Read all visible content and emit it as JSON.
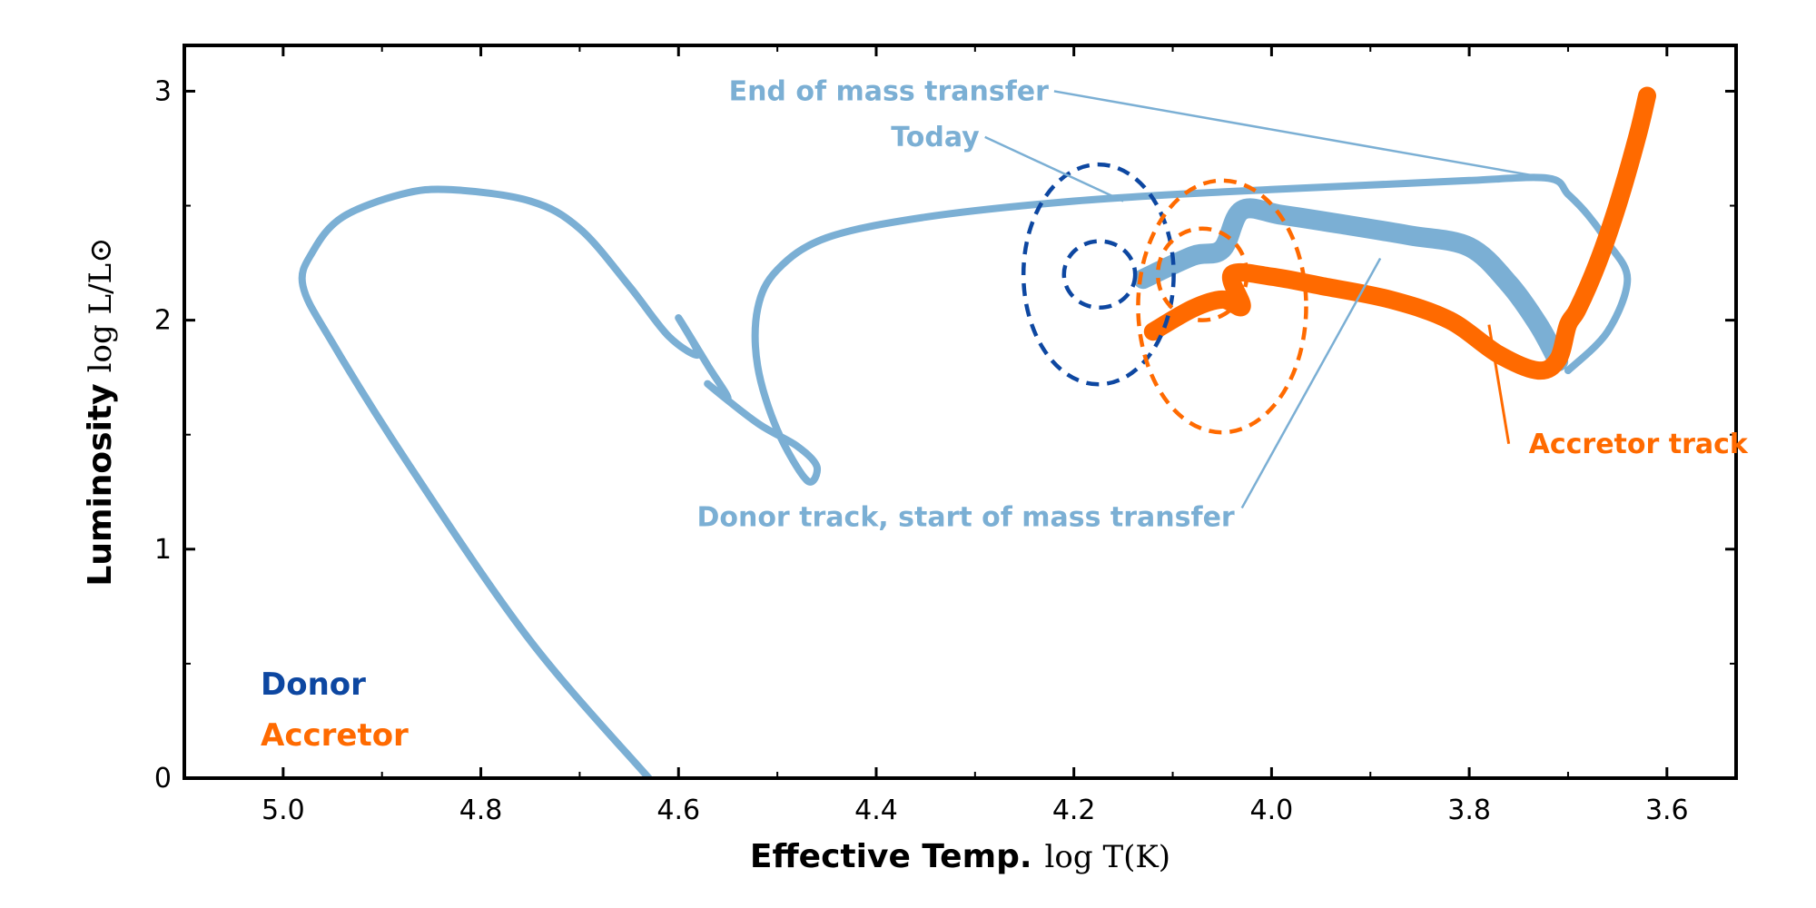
{
  "chart_data": {
    "type": "line",
    "title": "",
    "xlabel": "Effective Temp.",
    "xlabel_math": "log T(K)",
    "ylabel": "Luminosity",
    "ylabel_math": "log L/L⊙",
    "xlim": [
      5.1,
      3.53
    ],
    "ylim": [
      0,
      3.2
    ],
    "x_ticks": [
      5.0,
      4.8,
      4.6,
      4.4,
      4.2,
      4.0,
      3.8,
      3.6
    ],
    "x_tick_labels": [
      "5.0",
      "4.8",
      "4.6",
      "4.4",
      "4.2",
      "4.0",
      "3.8",
      "3.6"
    ],
    "y_ticks": [
      0,
      1,
      2,
      3
    ],
    "y_tick_labels": [
      "0",
      "1",
      "2",
      "3"
    ],
    "grid": false,
    "colors": {
      "donor_track": "#7bafd4",
      "donor": "#0d47a1",
      "accretor": "#ff6a00"
    },
    "series": [
      {
        "name": "Donor track",
        "x": [
          4.63,
          4.75,
          4.87,
          4.95,
          4.98,
          4.97,
          4.94,
          4.88,
          4.83,
          4.75,
          4.7,
          4.65,
          4.61,
          4.58,
          4.6,
          4.57,
          4.55,
          4.57,
          4.52,
          4.48,
          4.46,
          4.47,
          4.5,
          4.52,
          4.52,
          4.5,
          4.45,
          4.35,
          4.2,
          4.05,
          3.9,
          3.8,
          3.72,
          3.7,
          3.68,
          3.66,
          3.64,
          3.66,
          3.7
        ],
        "y": [
          0.0,
          0.6,
          1.35,
          1.9,
          2.15,
          2.3,
          2.45,
          2.55,
          2.57,
          2.52,
          2.4,
          2.15,
          1.93,
          1.85,
          2.01,
          1.8,
          1.66,
          1.72,
          1.55,
          1.45,
          1.36,
          1.3,
          1.52,
          1.8,
          2.05,
          2.22,
          2.36,
          2.45,
          2.52,
          2.56,
          2.59,
          2.61,
          2.62,
          2.55,
          2.46,
          2.34,
          2.18,
          1.95,
          1.78
        ]
      },
      {
        "name": "Donor track, mass transfer",
        "x": [
          4.13,
          4.08,
          4.05,
          4.03,
          3.99,
          3.93,
          3.86,
          3.8,
          3.76,
          3.73,
          3.71
        ],
        "y": [
          2.18,
          2.28,
          2.31,
          2.48,
          2.46,
          2.42,
          2.37,
          2.32,
          2.16,
          1.98,
          1.82
        ],
        "width": "thick"
      },
      {
        "name": "Accretor track",
        "x": [
          4.12,
          4.08,
          4.05,
          4.03,
          4.04,
          4.0,
          3.95,
          3.88,
          3.82,
          3.77,
          3.73,
          3.71,
          3.7,
          3.69,
          3.67,
          3.65,
          3.63,
          3.62
        ],
        "y": [
          1.95,
          2.05,
          2.09,
          2.06,
          2.2,
          2.19,
          2.15,
          2.09,
          2.0,
          1.85,
          1.78,
          1.83,
          1.98,
          2.05,
          2.25,
          2.5,
          2.8,
          2.98
        ],
        "width": "thick"
      }
    ],
    "contours": [
      {
        "name": "Donor inner",
        "center": [
          4.174,
          2.2
        ],
        "radii": [
          0.036,
          0.145
        ],
        "style": "dashed",
        "color_key": "donor"
      },
      {
        "name": "Donor outer",
        "center": [
          4.175,
          2.2
        ],
        "radii": [
          0.076,
          0.48
        ],
        "style": "dashed",
        "color_key": "donor"
      },
      {
        "name": "Accretor inner",
        "center": [
          4.07,
          2.2
        ],
        "radii": [
          0.045,
          0.2
        ],
        "style": "dashed",
        "color_key": "accretor"
      },
      {
        "name": "Accretor outer",
        "center": [
          4.05,
          2.06
        ],
        "radii": [
          0.085,
          0.55
        ],
        "style": "dashed",
        "color_key": "accretor"
      }
    ],
    "annotations": [
      {
        "text": "End of mass transfer",
        "pointer": [
          3.72,
          2.62
        ],
        "anchor": [
          4.22,
          3.0
        ],
        "color_key": "donor_track"
      },
      {
        "text": "Today",
        "pointer": [
          4.15,
          2.52
        ],
        "anchor": [
          4.29,
          2.8
        ],
        "color_key": "donor_track"
      },
      {
        "text": "Donor track, start of mass transfer",
        "pointer": [
          3.89,
          2.27
        ],
        "anchor": [
          4.03,
          1.18
        ],
        "color_key": "donor_track"
      },
      {
        "text": "Accretor track",
        "pointer": [
          3.78,
          1.98
        ],
        "anchor": [
          3.76,
          1.46
        ],
        "color_key": "accretor"
      }
    ],
    "legend": {
      "placement": "bottom-left",
      "entries": [
        {
          "label": "Donor",
          "color_key": "donor"
        },
        {
          "label": "Accretor",
          "color_key": "accretor"
        }
      ]
    }
  }
}
